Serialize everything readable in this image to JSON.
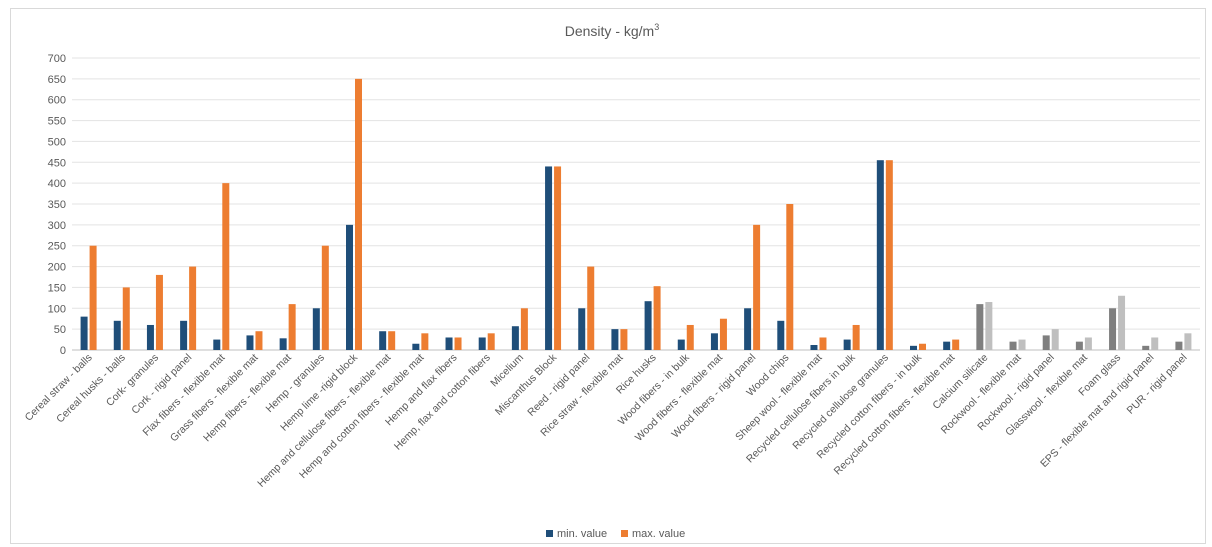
{
  "chart_data": {
    "type": "bar",
    "title": "Density - kg/m",
    "title_superscript": "3",
    "ylim": [
      0,
      700
    ],
    "yticks": [
      0,
      50,
      100,
      150,
      200,
      250,
      300,
      350,
      400,
      450,
      500,
      550,
      600,
      650,
      700
    ],
    "grid": true,
    "legend_position": "bottom",
    "categories": [
      "Cereal straw - balls",
      "Cereal husks - balls",
      "Cork- granules",
      "Cork - rigid panel",
      "Flax fibers - flexible mat",
      "Grass fibers - flexible mat",
      "Hemp fibers - flexible mat",
      "Hemp - granules",
      "Hemp lime -rigid block",
      "Hemp and cellulose fibers - flexible mat",
      "Hemp and cotton fibers - flexible mat",
      "Hemp and flax fibers",
      "Hemp, flax and cotton fibers",
      "Micelium",
      "Miscanthus Block",
      "Reed - rigid panel",
      "Rice straw - flexible mat",
      "Rice husks",
      "Wood fibers - in bulk",
      "Wood fibers - flexible mat",
      "Wood fibers - rigid panel",
      "Wood chips",
      "Sheep wool - flexible mat",
      "Recycled cellulose fibers in bulk",
      "Recycled cellulose granules",
      "Recycled cotton fibers - in bulk",
      "Recycled cotton fibers - flexible mat",
      "Calcium silicate",
      "Rockwool - flexible mat",
      "Rockwool - rigid panel",
      "Glasswool - flexible mat",
      "Foam glass",
      "EPS - flexible mat and rigid panel",
      "PUR - rigid panel"
    ],
    "conventional_from_index": 27,
    "series": [
      {
        "name": "min. value",
        "color": "#1f4e79",
        "conventional_color": "#7f7f7f",
        "values": [
          80,
          70,
          60,
          70,
          25,
          35,
          28,
          100,
          300,
          45,
          15,
          30,
          30,
          57,
          440,
          100,
          50,
          117,
          25,
          40,
          100,
          70,
          12,
          25,
          455,
          10,
          20,
          110,
          20,
          35,
          20,
          100,
          10,
          20
        ]
      },
      {
        "name": "max. value",
        "color": "#ed7d31",
        "conventional_color": "#bfbfbf",
        "values": [
          250,
          150,
          180,
          200,
          400,
          45,
          110,
          250,
          650,
          45,
          40,
          30,
          40,
          100,
          440,
          200,
          50,
          153,
          60,
          75,
          300,
          350,
          30,
          60,
          455,
          15,
          25,
          115,
          25,
          50,
          30,
          130,
          30,
          40
        ]
      }
    ]
  }
}
